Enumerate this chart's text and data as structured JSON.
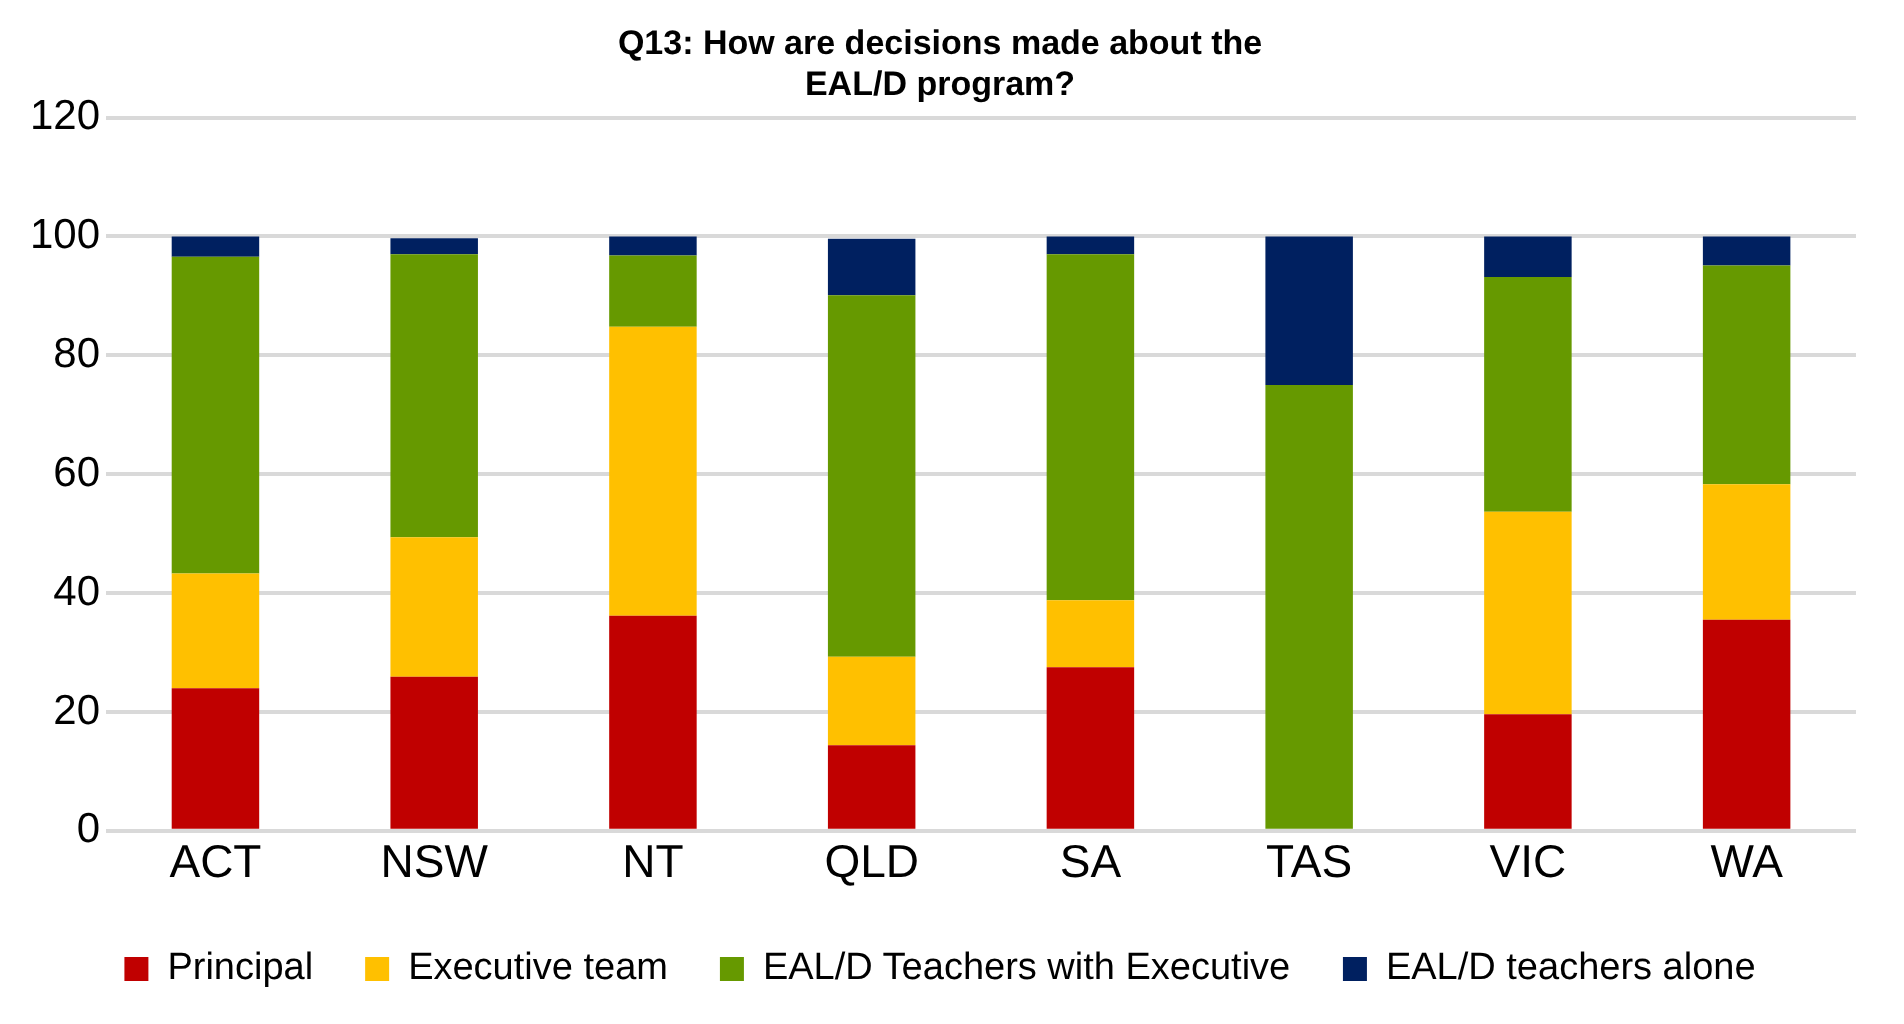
{
  "chart_data": {
    "type": "bar",
    "title": "Q13: How are decisions made about the\nEAL/D program?",
    "categories": [
      "ACT",
      "NSW",
      "NT",
      "QLD",
      "SA",
      "TAS",
      "VIC",
      "WA"
    ],
    "stacked": true,
    "ylim": [
      0,
      120
    ],
    "yticks": [
      0,
      20,
      40,
      60,
      80,
      100,
      120
    ],
    "grid": "y",
    "legend": "bottom",
    "series": [
      {
        "name": "Principal",
        "color": "#c00000",
        "values": [
          24.0,
          25.9,
          36.2,
          14.4,
          27.5,
          0,
          19.6,
          35.5
        ]
      },
      {
        "name": "Executive team",
        "color": "#ffc000",
        "values": [
          19.3,
          23.5,
          48.6,
          14.9,
          11.3,
          0,
          34.1,
          22.8
        ]
      },
      {
        "name": "EAL/D Teachers with Executive",
        "color": "#669900",
        "values": [
          53.3,
          47.6,
          12.0,
          60.8,
          58.2,
          75.0,
          39.5,
          36.8
        ]
      },
      {
        "name": "EAL/D teachers alone",
        "color": "#002060",
        "values": [
          3.4,
          2.7,
          3.2,
          9.5,
          3.0,
          25.0,
          6.8,
          4.9
        ]
      }
    ]
  }
}
